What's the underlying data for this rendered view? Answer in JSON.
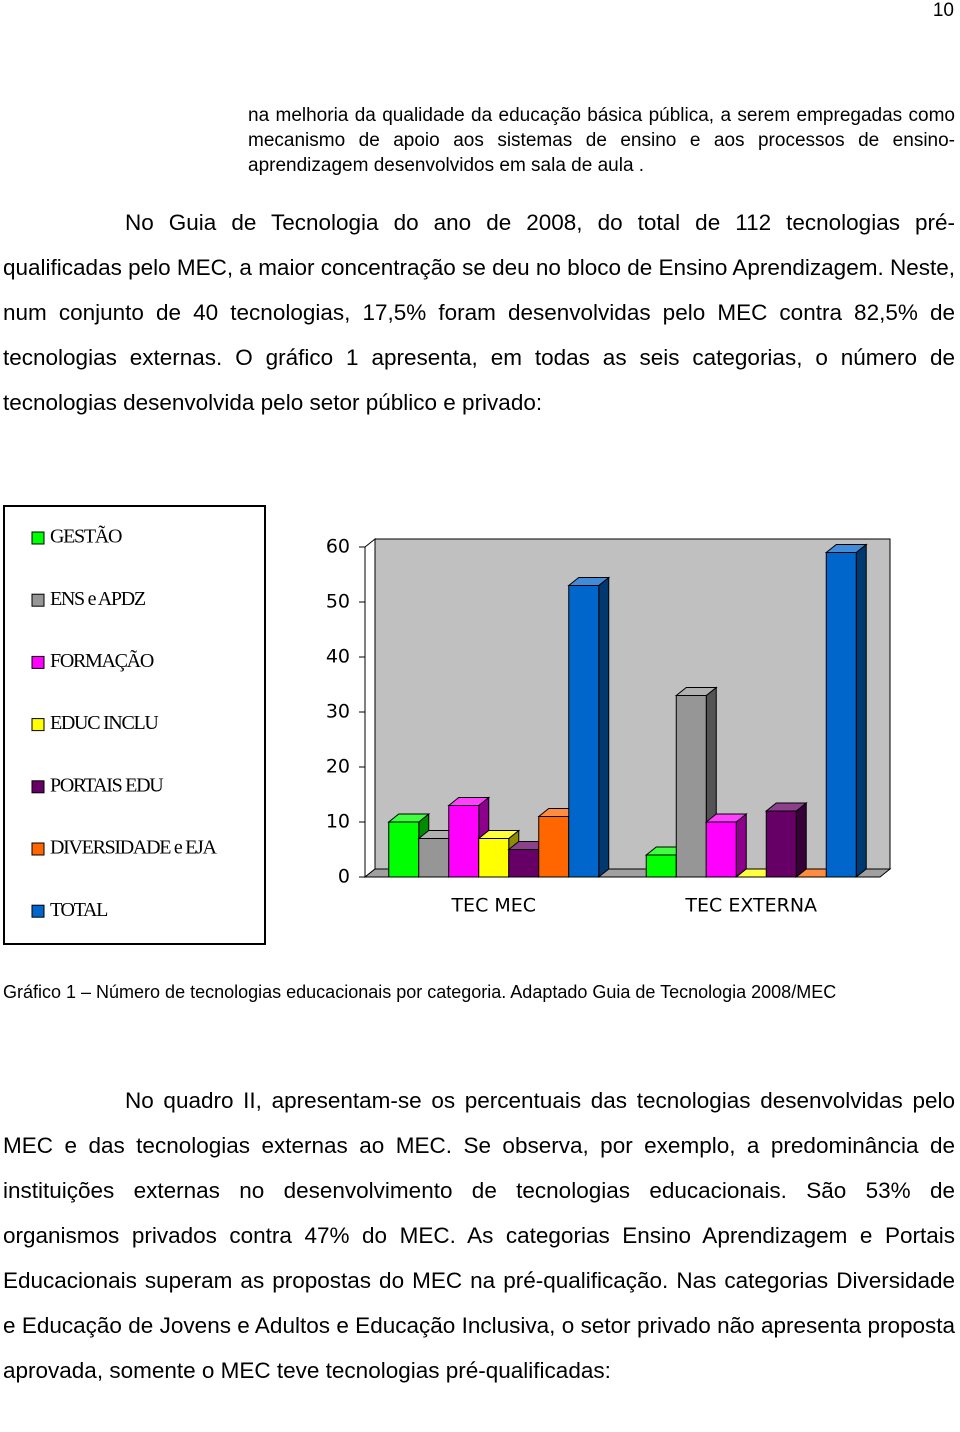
{
  "page_number": "10",
  "intro": "na melhoria da qualidade da educação básica pública, a serem empregadas como mecanismo de apoio aos sistemas de ensino e aos processos de ensino-aprendizagem desenvolvidos em sala de aula .",
  "paragraph_1": "No Guia de Tecnologia do ano de 2008, do total de 112 tecnologias pré-qualificadas pelo MEC, a maior concentração se deu no bloco de Ensino Aprendizagem. Neste, num conjunto de 40 tecnologias, 17,5% foram desenvolvidas pelo MEC contra 82,5% de tecnologias externas. O gráfico 1 apresenta, em todas as seis categorias, o número de tecnologias desenvolvida pelo setor público e privado:",
  "chart_data": {
    "type": "bar3d",
    "categories": [
      "TEC MEC",
      "TEC EXTERNA"
    ],
    "series": [
      {
        "name": "GESTÃO",
        "color": "#00ff00",
        "values": [
          10,
          4
        ]
      },
      {
        "name": "ENS e APDZ",
        "color": "#969696",
        "values": [
          7,
          33
        ]
      },
      {
        "name": "FORMAÇÃO",
        "color": "#ff00ff",
        "values": [
          13,
          10
        ]
      },
      {
        "name": "EDUC INCLU",
        "color": "#ffff00",
        "values": [
          7,
          0
        ]
      },
      {
        "name": "PORTAIS EDU",
        "color": "#660066",
        "values": [
          5,
          12
        ]
      },
      {
        "name": "DIVERSIDADE e EJA",
        "color": "#ff6600",
        "values": [
          11,
          0
        ]
      },
      {
        "name": "TOTAL",
        "color": "#0066cc",
        "values": [
          53,
          59
        ]
      }
    ],
    "ylim": [
      0,
      60
    ],
    "yticks": [
      0,
      10,
      20,
      30,
      40,
      50,
      60
    ],
    "grid": false,
    "legend": "left"
  },
  "caption": "Gráfico 1 – Número de tecnologias educacionais por categoria. Adaptado Guia de Tecnologia 2008/MEC",
  "paragraph_2": "No quadro II, apresentam-se os percentuais das tecnologias desenvolvidas pelo MEC e das tecnologias externas ao MEC. Se observa, por exemplo, a predominância de instituições externas no desenvolvimento de tecnologias educacionais. São 53% de organismos privados contra 47% do MEC. As categorias Ensino Aprendizagem e Portais Educacionais superam as propostas do MEC na pré-qualificação. Nas categorias Diversidade e Educação de Jovens e Adultos e Educação Inclusiva, o setor privado não apresenta proposta aprovada, somente o MEC teve tecnologias pré-qualificadas:"
}
